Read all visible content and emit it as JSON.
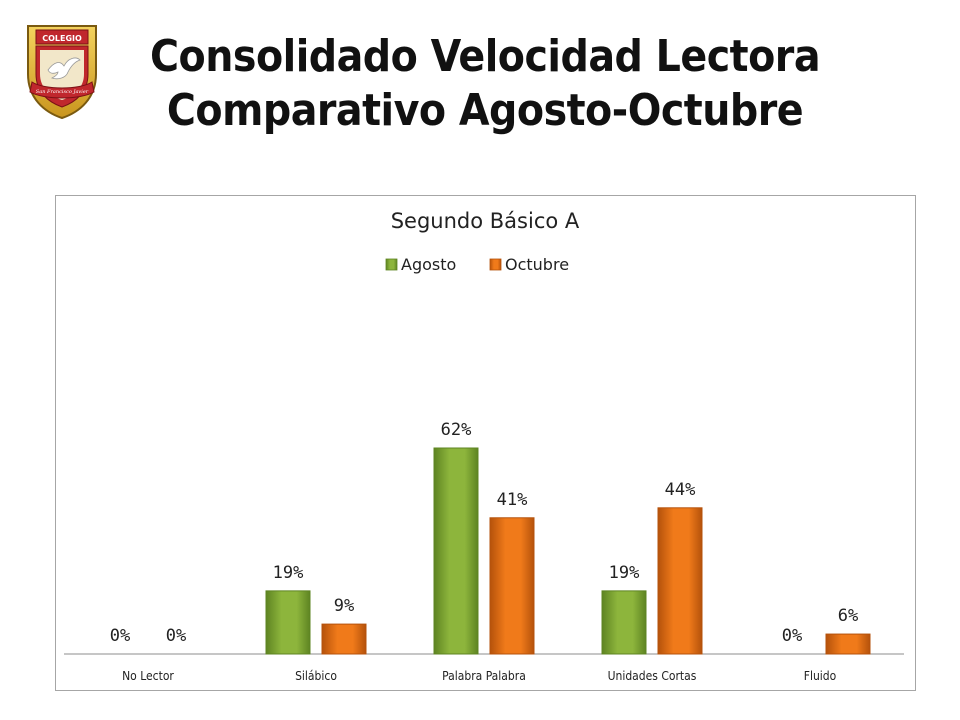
{
  "header": {
    "title_line1": "Consolidado Velocidad Lectora",
    "title_line2": "Comparativo Agosto-Octubre"
  },
  "logo": {
    "text": "COLEGIO",
    "motto": "San Francisco Javier"
  },
  "chart_data": {
    "type": "bar",
    "title": "Segundo Básico A",
    "xlabel": "",
    "ylabel": "",
    "categories": [
      "No Lector",
      "Silábico",
      "Palabra Palabra",
      "Unidades Cortas",
      "Fluido"
    ],
    "series": [
      {
        "name": "Agosto",
        "values": [
          0,
          19,
          62,
          19,
          0
        ],
        "labels": [
          "0%",
          "19%",
          "62%",
          "19%",
          "0%"
        ],
        "color": "#8DB53C",
        "color_dark": "#5E8422"
      },
      {
        "name": "Octubre",
        "values": [
          0,
          9,
          41,
          44,
          6
        ],
        "labels": [
          "0%",
          "9%",
          "41%",
          "44%",
          "6%"
        ],
        "color": "#F07A1A",
        "color_dark": "#B5520B"
      }
    ],
    "ylim": [
      0,
      100
    ],
    "grid": false,
    "legend": "top-center"
  }
}
